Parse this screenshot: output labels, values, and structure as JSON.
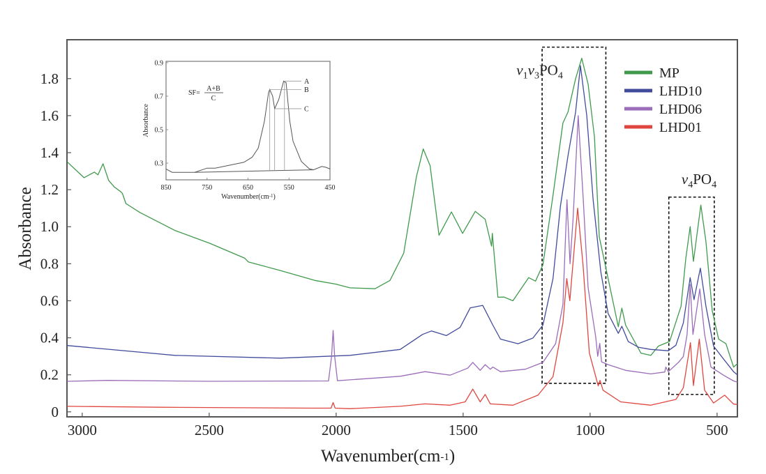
{
  "chart_data": [
    {
      "type": "line",
      "title": "",
      "xlabel": "Wavenumber(cm-1)",
      "xlabel_base": "Wavenumber(cm",
      "xlabel_sup": "-1",
      "xlabel_end": ")",
      "ylabel": "Absorbance",
      "xlim": [
        3060,
        420
      ],
      "ylim": [
        -0.027,
        2.01
      ],
      "x_reversed": true,
      "grid": false,
      "legend_position": "top-right",
      "xticks": [
        3000,
        2500,
        2000,
        1500,
        1000,
        500
      ],
      "xtick_labels": [
        "3000",
        "2500",
        "2000",
        "1500",
        "1000",
        "500"
      ],
      "yticks": [
        0,
        0.2,
        0.4,
        0.6,
        0.8,
        1.0,
        1.2,
        1.4,
        1.6,
        1.8
      ],
      "ytick_labels": [
        "0",
        "0.2",
        "0.4",
        "0.6",
        "0.8",
        "1.0",
        "1.2",
        "1.4",
        "1.6",
        "1.8"
      ],
      "series": [
        {
          "name": "MP",
          "color": "#3f9a4c",
          "points": [
            [
              3059,
              1.35
            ],
            [
              2993,
              1.265
            ],
            [
              2952,
              1.295
            ],
            [
              2938,
              1.28
            ],
            [
              2918,
              1.34
            ],
            [
              2896,
              1.25
            ],
            [
              2874,
              1.215
            ],
            [
              2849,
              1.19
            ],
            [
              2842,
              1.18
            ],
            [
              2828,
              1.125
            ],
            [
              2773,
              1.077
            ],
            [
              2635,
              0.98
            ],
            [
              2497,
              0.91
            ],
            [
              2360,
              0.83
            ],
            [
              2346,
              0.81
            ],
            [
              2222,
              0.764
            ],
            [
              2084,
              0.71
            ],
            [
              2001,
              0.69
            ],
            [
              1946,
              0.67
            ],
            [
              1847,
              0.665
            ],
            [
              1788,
              0.71
            ],
            [
              1734,
              0.857
            ],
            [
              1684,
              1.27
            ],
            [
              1657,
              1.42
            ],
            [
              1630,
              1.33
            ],
            [
              1595,
              0.954
            ],
            [
              1546,
              1.08
            ],
            [
              1502,
              0.964
            ],
            [
              1452,
              1.083
            ],
            [
              1413,
              1.04
            ],
            [
              1388,
              0.895
            ],
            [
              1385,
              0.964
            ],
            [
              1363,
              0.619
            ],
            [
              1339,
              0.62
            ],
            [
              1304,
              0.6
            ],
            [
              1242,
              0.725
            ],
            [
              1215,
              0.706
            ],
            [
              1186,
              0.794
            ],
            [
              1146,
              1.17
            ],
            [
              1107,
              1.56
            ],
            [
              1087,
              1.62
            ],
            [
              1057,
              1.8
            ],
            [
              1033,
              1.91
            ],
            [
              1008,
              1.77
            ],
            [
              983,
              1.485
            ],
            [
              964,
              0.945
            ],
            [
              929,
              0.72
            ],
            [
              889,
              0.46
            ],
            [
              875,
              0.56
            ],
            [
              860,
              0.468
            ],
            [
              800,
              0.317
            ],
            [
              761,
              0.305
            ],
            [
              731,
              0.355
            ],
            [
              687,
              0.38
            ],
            [
              642,
              0.57
            ],
            [
              623,
              0.83
            ],
            [
              606,
              1.0
            ],
            [
              593,
              0.813
            ],
            [
              564,
              1.117
            ],
            [
              544,
              0.92
            ],
            [
              519,
              0.544
            ],
            [
              494,
              0.393
            ],
            [
              465,
              0.368
            ],
            [
              435,
              0.242
            ],
            [
              420,
              0.26
            ]
          ]
        },
        {
          "name": "LHD10",
          "color": "#414b9b",
          "points": [
            [
              3059,
              0.358
            ],
            [
              2635,
              0.305
            ],
            [
              2222,
              0.29
            ],
            [
              1946,
              0.305
            ],
            [
              1748,
              0.337
            ],
            [
              1660,
              0.418
            ],
            [
              1625,
              0.437
            ],
            [
              1566,
              0.412
            ],
            [
              1512,
              0.456
            ],
            [
              1472,
              0.562
            ],
            [
              1423,
              0.575
            ],
            [
              1383,
              0.468
            ],
            [
              1353,
              0.393
            ],
            [
              1284,
              0.368
            ],
            [
              1225,
              0.399
            ],
            [
              1186,
              0.468
            ],
            [
              1146,
              0.72
            ],
            [
              1117,
              1.11
            ],
            [
              1087,
              1.384
            ],
            [
              1057,
              1.62
            ],
            [
              1038,
              1.87
            ],
            [
              1013,
              1.6
            ],
            [
              988,
              1.146
            ],
            [
              958,
              0.757
            ],
            [
              929,
              0.531
            ],
            [
              889,
              0.424
            ],
            [
              875,
              0.462
            ],
            [
              850,
              0.38
            ],
            [
              810,
              0.349
            ],
            [
              761,
              0.337
            ],
            [
              692,
              0.33
            ],
            [
              662,
              0.36
            ],
            [
              633,
              0.48
            ],
            [
              606,
              0.725
            ],
            [
              591,
              0.606
            ],
            [
              566,
              0.776
            ],
            [
              544,
              0.57
            ],
            [
              514,
              0.355
            ],
            [
              475,
              0.286
            ],
            [
              435,
              0.217
            ],
            [
              420,
              0.2
            ]
          ]
        },
        {
          "name": "LHD06",
          "color": "#9b6cb9",
          "points": [
            [
              3059,
              0.165
            ],
            [
              2900,
              0.17
            ],
            [
              2500,
              0.165
            ],
            [
              2030,
              0.167
            ],
            [
              2018,
              0.3
            ],
            [
              2012,
              0.44
            ],
            [
              2006,
              0.3
            ],
            [
              1995,
              0.168
            ],
            [
              1946,
              0.173
            ],
            [
              1748,
              0.192
            ],
            [
              1650,
              0.217
            ],
            [
              1551,
              0.198
            ],
            [
              1482,
              0.236
            ],
            [
              1462,
              0.267
            ],
            [
              1433,
              0.224
            ],
            [
              1413,
              0.255
            ],
            [
              1393,
              0.23
            ],
            [
              1383,
              0.242
            ],
            [
              1353,
              0.217
            ],
            [
              1255,
              0.23
            ],
            [
              1186,
              0.267
            ],
            [
              1136,
              0.368
            ],
            [
              1107,
              0.58
            ],
            [
              1091,
              1.146
            ],
            [
              1079,
              0.8
            ],
            [
              1067,
              1.045
            ],
            [
              1047,
              1.6
            ],
            [
              1028,
              1.17
            ],
            [
              1008,
              0.67
            ],
            [
              978,
              0.405
            ],
            [
              970,
              0.3
            ],
            [
              962,
              0.37
            ],
            [
              955,
              0.27
            ],
            [
              929,
              0.255
            ],
            [
              860,
              0.224
            ],
            [
              761,
              0.205
            ],
            [
              706,
              0.215
            ],
            [
              702,
              0.242
            ],
            [
              692,
              0.217
            ],
            [
              652,
              0.267
            ],
            [
              633,
              0.299
            ],
            [
              618,
              0.418
            ],
            [
              606,
              0.688
            ],
            [
              595,
              0.418
            ],
            [
              568,
              0.663
            ],
            [
              549,
              0.418
            ],
            [
              524,
              0.242
            ],
            [
              475,
              0.198
            ],
            [
              435,
              0.167
            ],
            [
              420,
              0.16
            ]
          ]
        },
        {
          "name": "LHD01",
          "color": "#e0463f",
          "points": [
            [
              3059,
              0.03
            ],
            [
              2700,
              0.025
            ],
            [
              2100,
              0.02
            ],
            [
              2020,
              0.02
            ],
            [
              2012,
              0.05
            ],
            [
              2004,
              0.02
            ],
            [
              1946,
              0.017
            ],
            [
              1748,
              0.03
            ],
            [
              1650,
              0.043
            ],
            [
              1551,
              0.036
            ],
            [
              1492,
              0.054
            ],
            [
              1462,
              0.123
            ],
            [
              1433,
              0.054
            ],
            [
              1413,
              0.094
            ],
            [
              1393,
              0.043
            ],
            [
              1304,
              0.036
            ],
            [
              1205,
              0.09
            ],
            [
              1146,
              0.19
            ],
            [
              1107,
              0.48
            ],
            [
              1092,
              0.72
            ],
            [
              1080,
              0.6
            ],
            [
              1049,
              1.1
            ],
            [
              1028,
              0.795
            ],
            [
              1003,
              0.318
            ],
            [
              968,
              0.14
            ],
            [
              961,
              0.17
            ],
            [
              949,
              0.117
            ],
            [
              880,
              0.054
            ],
            [
              761,
              0.036
            ],
            [
              662,
              0.067
            ],
            [
              633,
              0.13
            ],
            [
              605,
              0.374
            ],
            [
              593,
              0.142
            ],
            [
              570,
              0.393
            ],
            [
              549,
              0.117
            ],
            [
              514,
              0.048
            ],
            [
              470,
              0.09
            ],
            [
              435,
              0.042
            ],
            [
              420,
              0.04
            ]
          ]
        }
      ],
      "annotations": [
        {
          "parts": [
            "v",
            "1",
            "v",
            "3",
            "PO",
            "4"
          ],
          "x": 1290,
          "y": 1.82
        },
        {
          "parts": [
            "v",
            "4",
            "PO",
            "4"
          ],
          "x": 640,
          "y": 1.23
        }
      ],
      "highlight_regions": [
        {
          "label": "v1v3PO4 region",
          "x": [
            1189,
            938
          ],
          "y": [
            0.154,
            1.97
          ]
        },
        {
          "label": "v4PO4 region",
          "x": [
            690,
            511
          ],
          "y": [
            0.094,
            1.16
          ]
        }
      ]
    },
    {
      "type": "line",
      "title": "",
      "xlabel": "Wavenumber(cm-1)",
      "xlabel_base": "Wavenumber(cm",
      "xlabel_sup": "-1",
      "xlabel_end": ")",
      "ylabel": "Absorbance",
      "xlim": [
        850,
        450
      ],
      "ylim": [
        0.2,
        0.908
      ],
      "xticks": [
        850,
        750,
        650,
        550,
        450
      ],
      "xtick_labels": [
        "850",
        "750",
        "650",
        "550",
        "450"
      ],
      "yticks": [
        0.3,
        0.5,
        0.7,
        0.9
      ],
      "ytick_labels": [
        "0.3",
        "0.5",
        "0.7",
        "0.9"
      ],
      "formula": {
        "lhs": "SF=",
        "numerator": "A+B",
        "denominator": "C"
      },
      "series": [
        {
          "name": "spectrum",
          "color": "#555555",
          "points": [
            [
              850,
              0.265
            ],
            [
              835,
              0.245
            ],
            [
              780,
              0.245
            ],
            [
              750,
              0.27
            ],
            [
              730,
              0.27
            ],
            [
              700,
              0.285
            ],
            [
              660,
              0.305
            ],
            [
              640,
              0.335
            ],
            [
              625,
              0.39
            ],
            [
              610,
              0.55
            ],
            [
              600,
              0.72
            ],
            [
              597,
              0.74
            ],
            [
              590,
              0.7
            ],
            [
              585,
              0.625
            ],
            [
              575,
              0.68
            ],
            [
              563,
              0.79
            ],
            [
              557,
              0.78
            ],
            [
              548,
              0.55
            ],
            [
              540,
              0.43
            ],
            [
              520,
              0.31
            ],
            [
              500,
              0.265
            ],
            [
              490,
              0.26
            ],
            [
              470,
              0.28
            ],
            [
              460,
              0.275
            ],
            [
              450,
              0.265
            ]
          ]
        },
        {
          "name": "baseline",
          "color": "#555555",
          "points": [
            [
              780,
              0.245
            ],
            [
              490,
              0.26
            ]
          ]
        }
      ],
      "markers": [
        {
          "label": "A",
          "x": 561,
          "y": 0.79
        },
        {
          "label": "B",
          "x": 597,
          "y": 0.74
        },
        {
          "label": "C",
          "x": 585,
          "y": 0.625
        }
      ]
    }
  ]
}
